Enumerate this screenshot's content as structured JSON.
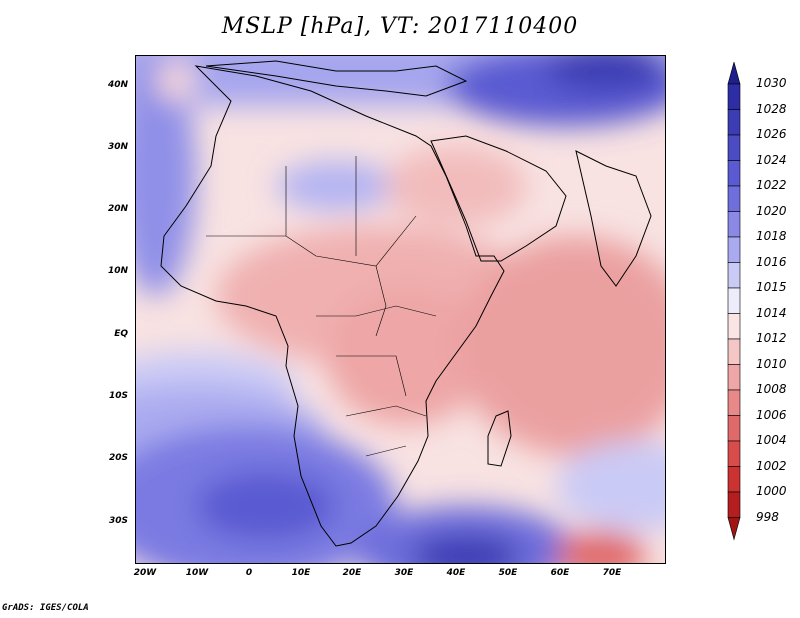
{
  "title": "MSLP [hPa], VT: 2017110400",
  "footer": "GrADS: IGES/COLA",
  "map": {
    "lon_range": [
      -23,
      80
    ],
    "lat_range": [
      -37,
      45
    ],
    "y_ticks": [
      "40N",
      "30N",
      "20N",
      "10N",
      "EQ",
      "10S",
      "20S",
      "30S"
    ],
    "x_ticks": [
      "20W",
      "10W",
      "0",
      "10E",
      "20E",
      "30E",
      "40E",
      "50E",
      "60E",
      "70E"
    ]
  },
  "colorbar": {
    "levels": [
      "1030",
      "1028",
      "1026",
      "1024",
      "1022",
      "1020",
      "1018",
      "1016",
      "1015",
      "1014",
      "1012",
      "1010",
      "1008",
      "1006",
      "1004",
      "1002",
      "1000",
      "998"
    ],
    "colors": [
      "#1e1e8c",
      "#2d2da6",
      "#3c3cb4",
      "#4b4bc3",
      "#5a5ad2",
      "#6e6edc",
      "#8a8ae6",
      "#aaaaf0",
      "#cacaf6",
      "#ececfa",
      "#fae4e4",
      "#f4c6c6",
      "#eea6a6",
      "#e88888",
      "#e06a6a",
      "#d84c4c",
      "#cc3232",
      "#b41e1e",
      "#a01414"
    ]
  }
}
